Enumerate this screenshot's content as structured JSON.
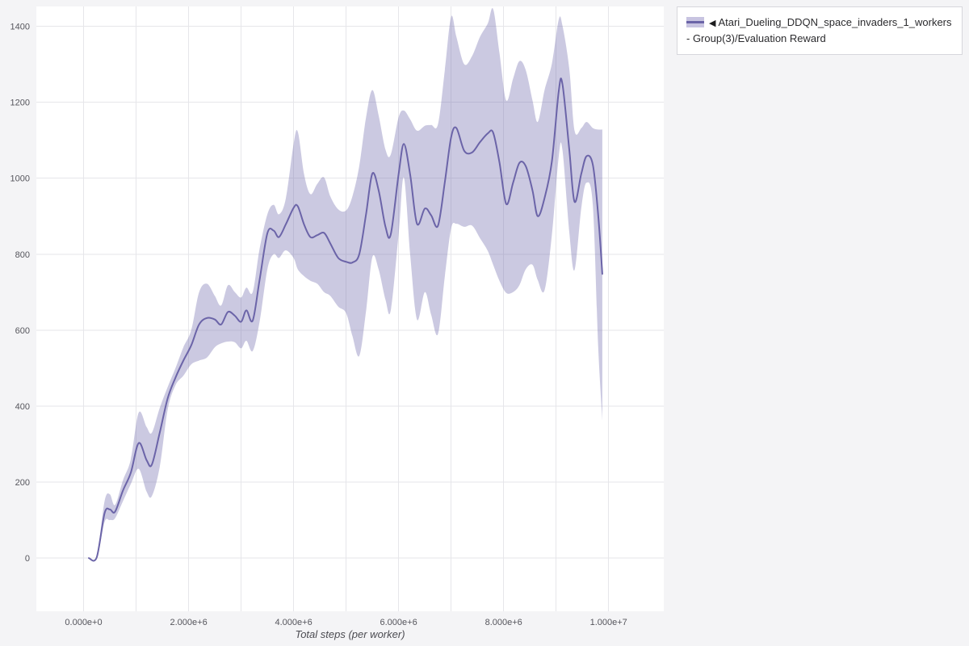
{
  "figure": {
    "x_axis_label": "Total steps (per worker)",
    "background": "#f4f4f6",
    "plot_background": "#ffffff",
    "grid_color": "#e6e6ea",
    "tick_color": "#55555c"
  },
  "legend": {
    "marker": "◀",
    "label": "Atari_Dueling_DDQN_space_invaders_1_workers - Group(3)/Evaluation Reward",
    "line_color": "#6b64a8",
    "band_color": "#c8c4e1"
  },
  "chart_data": {
    "type": "line",
    "title": "",
    "xlabel": "Total steps (per worker)",
    "ylabel": "",
    "grid": true,
    "legend_position": "top-right",
    "xlim": [
      -900000,
      11050000
    ],
    "ylim": [
      -140,
      1452
    ],
    "x_ticks": [
      0,
      2000000,
      4000000,
      6000000,
      8000000,
      10000000
    ],
    "x_tick_labels": [
      "0.000e+0",
      "2.000e+6",
      "4.000e+6",
      "6.000e+6",
      "8.000e+6",
      "1.000e+7"
    ],
    "y_ticks": [
      0,
      200,
      400,
      600,
      800,
      1000,
      1200,
      1400
    ],
    "x_minor_grid_step": 1000000,
    "series": [
      {
        "name": "Atari_Dueling_DDQN_space_invaders_1_workers - Group(3)/Evaluation Reward",
        "color": "#6b64a8",
        "band_color": "rgba(107,100,168,0.35)",
        "x": [
          100000,
          250000,
          400000,
          500000,
          600000,
          750000,
          900000,
          1050000,
          1200000,
          1300000,
          1450000,
          1600000,
          1750000,
          1900000,
          2050000,
          2200000,
          2350000,
          2500000,
          2620000,
          2750000,
          2880000,
          3000000,
          3100000,
          3220000,
          3350000,
          3500000,
          3620000,
          3720000,
          3850000,
          4000000,
          4080000,
          4200000,
          4320000,
          4450000,
          4580000,
          4700000,
          4850000,
          5000000,
          5120000,
          5250000,
          5380000,
          5500000,
          5620000,
          5750000,
          5850000,
          6000000,
          6100000,
          6220000,
          6350000,
          6500000,
          6620000,
          6750000,
          6880000,
          7000000,
          7100000,
          7250000,
          7400000,
          7550000,
          7700000,
          7800000,
          7920000,
          8050000,
          8180000,
          8300000,
          8420000,
          8550000,
          8650000,
          8780000,
          8920000,
          9050000,
          9120000,
          9250000,
          9350000,
          9480000,
          9580000,
          9700000,
          9800000,
          9880000
        ],
        "mean": [
          0,
          2,
          118,
          128,
          122,
          178,
          225,
          303,
          258,
          246,
          330,
          420,
          475,
          520,
          560,
          615,
          632,
          628,
          615,
          648,
          638,
          622,
          652,
          625,
          730,
          855,
          862,
          845,
          878,
          922,
          926,
          878,
          845,
          850,
          856,
          828,
          790,
          780,
          778,
          800,
          905,
          1012,
          968,
          872,
          852,
          1010,
          1090,
          1010,
          880,
          920,
          902,
          875,
          990,
          1108,
          1132,
          1072,
          1068,
          1095,
          1118,
          1120,
          1042,
          932,
          988,
          1040,
          1032,
          968,
          900,
          948,
          1045,
          1230,
          1248,
          1075,
          938,
          1012,
          1058,
          1035,
          905,
          748
        ],
        "lower": [
          0,
          0,
          95,
          100,
          105,
          150,
          195,
          235,
          175,
          163,
          240,
          390,
          455,
          480,
          510,
          520,
          528,
          555,
          565,
          570,
          568,
          552,
          572,
          545,
          620,
          760,
          800,
          790,
          810,
          790,
          760,
          742,
          730,
          722,
          700,
          690,
          662,
          645,
          585,
          532,
          650,
          792,
          760,
          680,
          652,
          852,
          1002,
          800,
          628,
          700,
          640,
          590,
          742,
          868,
          880,
          872,
          875,
          842,
          808,
          772,
          730,
          698,
          700,
          718,
          760,
          772,
          732,
          705,
          852,
          1058,
          1075,
          858,
          758,
          922,
          988,
          928,
          560,
          362
        ],
        "upper": [
          0,
          5,
          150,
          168,
          140,
          205,
          260,
          383,
          345,
          330,
          395,
          450,
          500,
          555,
          600,
          700,
          722,
          690,
          665,
          718,
          700,
          686,
          712,
          700,
          812,
          905,
          930,
          905,
          945,
          1090,
          1122,
          1010,
          958,
          985,
          1002,
          952,
          918,
          915,
          952,
          1032,
          1160,
          1232,
          1165,
          1075,
          1062,
          1160,
          1178,
          1155,
          1125,
          1138,
          1140,
          1142,
          1285,
          1425,
          1372,
          1300,
          1322,
          1372,
          1408,
          1445,
          1330,
          1205,
          1262,
          1308,
          1285,
          1205,
          1148,
          1232,
          1302,
          1418,
          1402,
          1288,
          1125,
          1132,
          1148,
          1132,
          1128,
          1128
        ]
      }
    ]
  }
}
